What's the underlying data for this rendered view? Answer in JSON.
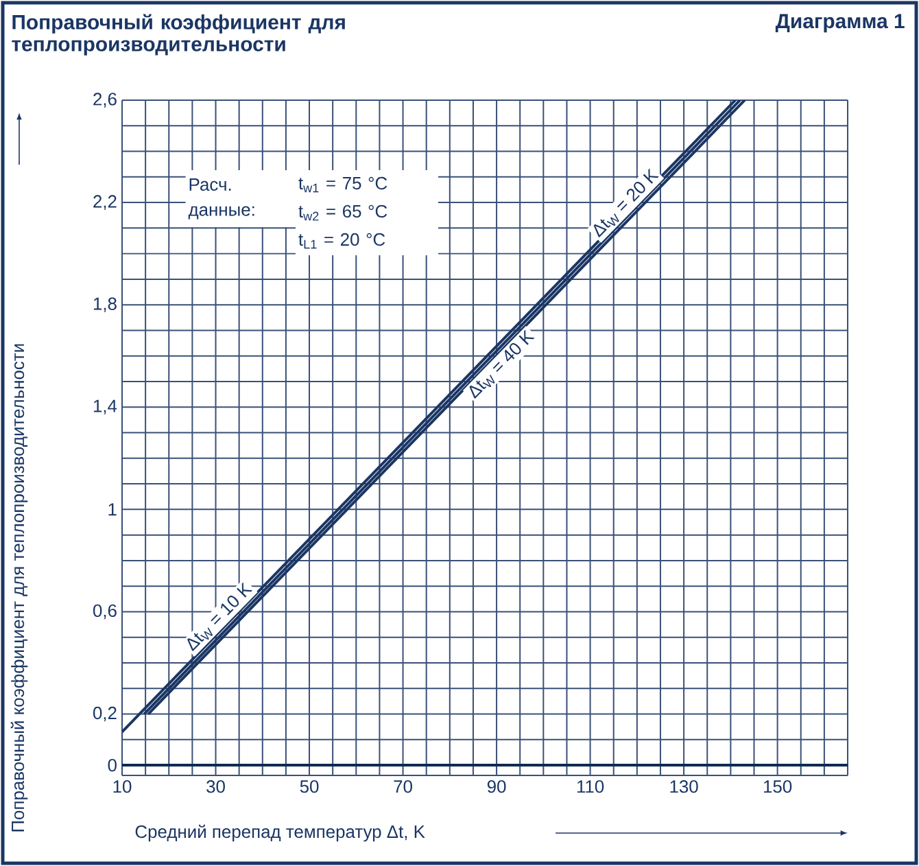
{
  "chart_data": {
    "type": "line",
    "title": "Поправочный коэффициент для теплопроизводительности",
    "xlabel": "Средний перепад температур Δt, K",
    "ylabel": "Поправочный коэффициент для теплопроизводительности",
    "annotations": [
      "Диаграмма 1",
      "Расч.",
      "данные:",
      "t$_{w1}$ = 75 °C",
      "t$_{w2}$ = 65 °C",
      "t$_{L1}$ = 20 °C"
    ],
    "series": [
      {
        "name": "Δt$_{W}$ = 10 K",
        "color": "#1b3664",
        "x": [
          10,
          141
        ],
        "values": [
          0.13,
          2.6
        ]
      },
      {
        "name": "Δt$_{W}$ = 20 K",
        "color": "#1b3664",
        "x": [
          14.7,
          142
        ],
        "values": [
          0.2,
          2.6
        ]
      },
      {
        "name": "Δt$_{W}$ = 40 K",
        "color": "#1b3664",
        "x": [
          15.6,
          143
        ],
        "values": [
          0.2,
          2.6
        ]
      }
    ],
    "xlim": [
      10,
      165
    ],
    "ylim": [
      -0.04,
      2.6
    ],
    "xticks": [
      10,
      {
        "value": 15,
        "label": null
      },
      {
        "value": 20,
        "label": null
      },
      {
        "value": 25,
        "label": null
      },
      30,
      {
        "value": 35,
        "label": null
      },
      {
        "value": 40,
        "label": null
      },
      {
        "value": 45,
        "label": null
      },
      50,
      {
        "value": 55,
        "label": null
      },
      {
        "value": 60,
        "label": null
      },
      {
        "value": 65,
        "label": null
      },
      70,
      {
        "value": 75,
        "label": null
      },
      {
        "value": 80,
        "label": null
      },
      {
        "value": 85,
        "label": null
      },
      90,
      {
        "value": 95,
        "label": null
      },
      {
        "value": 100,
        "label": null
      },
      {
        "value": 105,
        "label": null
      },
      110,
      {
        "value": 115,
        "label": null
      },
      {
        "value": 120,
        "label": null
      },
      {
        "value": 125,
        "label": null
      },
      130,
      {
        "value": 135,
        "label": null
      },
      {
        "value": 140,
        "label": null
      },
      {
        "value": 145,
        "label": null
      },
      150,
      {
        "value": 155,
        "label": null
      },
      {
        "value": 160,
        "label": null
      },
      {
        "value": 165,
        "label": null
      }
    ],
    "yticks": [
      0,
      {
        "value": 0.1,
        "label": null
      },
      {
        "value": 0.2,
        "label": "0,2"
      },
      {
        "value": 0.3,
        "label": null
      },
      {
        "value": 0.4,
        "label": null
      },
      {
        "value": 0.5,
        "label": null
      },
      {
        "value": 0.6,
        "label": "0,6"
      },
      {
        "value": 0.7,
        "label": null
      },
      {
        "value": 0.8,
        "label": null
      },
      {
        "value": 0.9,
        "label": null
      },
      1,
      {
        "value": 1.1,
        "label": null
      },
      {
        "value": 1.2,
        "label": null
      },
      {
        "value": 1.3,
        "label": null
      },
      {
        "value": 1.4,
        "label": "1,4"
      },
      {
        "value": 1.5,
        "label": null
      },
      {
        "value": 1.6,
        "label": null
      },
      {
        "value": 1.7,
        "label": null
      },
      {
        "value": 1.8,
        "label": "1,8"
      },
      {
        "value": 1.9,
        "label": null
      },
      {
        "value": 2.0,
        "label": null
      },
      {
        "value": 2.1,
        "label": null
      },
      {
        "value": 2.2,
        "label": "2,2"
      },
      {
        "value": 2.3,
        "label": null
      },
      {
        "value": 2.4,
        "label": null
      },
      {
        "value": 2.5,
        "label": null
      },
      {
        "value": 2.6,
        "label": "2,6"
      }
    ],
    "ref_lines": [
      {
        "axis": "y",
        "value": 0,
        "color": "#102a50"
      }
    ],
    "grid": true,
    "marker": "none",
    "line_style": "solid"
  }
}
